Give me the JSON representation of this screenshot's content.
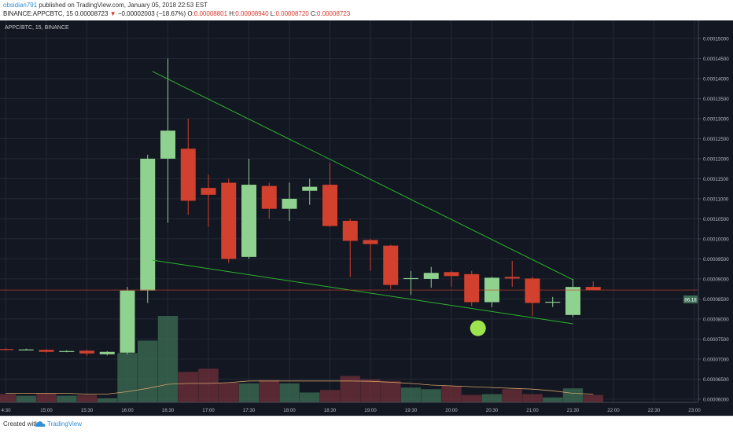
{
  "header": {
    "user": "obsidian791",
    "published": " published on TradingView.com, January 05, 2018 22:53 EST",
    "symbol_full": "BINANCE:APPCBTC, 15",
    "last": "0.00008723",
    "arrow": "▼",
    "change": "−0.00002003 (−18.67%)",
    "o_label": "O:",
    "o_value": "0.00008801",
    "h_label": "H:",
    "h_value": "0.00008940",
    "l_label": "L:",
    "l_value": "0.00008720",
    "c_label": "C:",
    "c_value": "0.00008723"
  },
  "legend": {
    "symbol": "APPC/BTC, 15, BINANCE"
  },
  "footer": {
    "created": "Created with",
    "brand": "TradingView",
    "logo_icon": "tradingview-cloud-icon"
  },
  "colors": {
    "background": "#131722",
    "up": "#8fd18e",
    "down": "#d2402e",
    "trendline": "#2bb52b",
    "price_line": "#d2402e",
    "vol_ma": "#d6a266",
    "marker": "#9de34e"
  },
  "chart_data": {
    "type": "candlestick",
    "x_ticks": [
      "4:30",
      "15:00",
      "15:30",
      "16:00",
      "16:30",
      "17:00",
      "17:30",
      "18:00",
      "18:30",
      "19:00",
      "19:30",
      "20:00",
      "20:30",
      "21:00",
      "21:30",
      "22:00",
      "22:30",
      "23:00"
    ],
    "y_ticks": [
      "0.00015000",
      "0.00014500",
      "0.00014000",
      "0.00013500",
      "0.00013000",
      "0.00012500",
      "0.00012000",
      "0.00011500",
      "0.00011000",
      "0.00010500",
      "0.00010000",
      "0.00009500",
      "0.00009000",
      "0.00008500",
      "0.00008000",
      "0.00007500",
      "0.00007000",
      "0.00006500",
      "0.00006000"
    ],
    "y_tick_values": [
      0.00015,
      0.000145,
      0.00014,
      0.000135,
      0.00013,
      0.000125,
      0.00012,
      0.000115,
      0.00011,
      0.000105,
      0.0001,
      9.5e-05,
      9e-05,
      8.5e-05,
      8e-05,
      7.5e-05,
      7e-05,
      6.5e-05,
      6e-05
    ],
    "ylim": [
      5.92e-05,
      0.0001545
    ],
    "price_label": "0.00008723",
    "price_value": 8.723e-05,
    "volume_label": "86.18",
    "candles": [
      {
        "time": "14:30",
        "o": 7.25e-05,
        "h": 7.27e-05,
        "l": 7.22e-05,
        "c": 7.23e-05
      },
      {
        "time": "14:45",
        "o": 7.24e-05,
        "h": 7.26e-05,
        "l": 7.22e-05,
        "c": 7.24e-05
      },
      {
        "time": "15:00",
        "o": 7.23e-05,
        "h": 7.25e-05,
        "l": 7.16e-05,
        "c": 7.18e-05
      },
      {
        "time": "15:15",
        "o": 7.19e-05,
        "h": 7.22e-05,
        "l": 7.17e-05,
        "c": 7.2e-05
      },
      {
        "time": "15:30",
        "o": 7.21e-05,
        "h": 7.23e-05,
        "l": 7.08e-05,
        "c": 7.14e-05
      },
      {
        "time": "15:45",
        "o": 7.12e-05,
        "h": 7.2e-05,
        "l": 7.09e-05,
        "c": 7.18e-05
      },
      {
        "time": "16:00",
        "o": 7.16e-05,
        "h": 8.8e-05,
        "l": 7.12e-05,
        "c": 8.71e-05
      },
      {
        "time": "16:15",
        "o": 8.71e-05,
        "h": 0.000121,
        "l": 8.4e-05,
        "c": 0.00012
      },
      {
        "time": "16:30",
        "o": 0.00012,
        "h": 0.000145,
        "l": 0.000104,
        "c": 0.000127
      },
      {
        "time": "16:45",
        "o": 0.0001225,
        "h": 0.00013,
        "l": 0.000106,
        "c": 0.0001095
      },
      {
        "time": "17:00",
        "o": 0.0001127,
        "h": 0.000116,
        "l": 0.000103,
        "c": 0.000111
      },
      {
        "time": "17:15",
        "o": 0.000114,
        "h": 0.000115,
        "l": 9.4e-05,
        "c": 9.5e-05
      },
      {
        "time": "17:30",
        "o": 9.55e-05,
        "h": 0.00012,
        "l": 9.5e-05,
        "c": 0.0001135
      },
      {
        "time": "17:45",
        "o": 0.0001132,
        "h": 0.000114,
        "l": 0.000105,
        "c": 0.0001075
      },
      {
        "time": "18:00",
        "o": 0.0001075,
        "h": 0.000114,
        "l": 0.0001045,
        "c": 0.00011
      },
      {
        "time": "18:15",
        "o": 0.000112,
        "h": 0.000115,
        "l": 0.0001085,
        "c": 0.000113
      },
      {
        "time": "18:30",
        "o": 0.0001135,
        "h": 0.000119,
        "l": 0.000103,
        "c": 0.0001032
      },
      {
        "time": "18:45",
        "o": 0.0001045,
        "h": 0.000105,
        "l": 9.05e-05,
        "c": 9.95e-05
      },
      {
        "time": "19:00",
        "o": 9.97e-05,
        "h": 0.0001,
        "l": 9.2e-05,
        "c": 9.87e-05
      },
      {
        "time": "19:15",
        "o": 9.83e-05,
        "h": 9.85e-05,
        "l": 8.75e-05,
        "c": 8.85e-05
      },
      {
        "time": "19:30",
        "o": 9e-05,
        "h": 9.2e-05,
        "l": 8.6e-05,
        "c": 9.02e-05
      },
      {
        "time": "19:45",
        "o": 9e-05,
        "h": 9.3e-05,
        "l": 8.78e-05,
        "c": 9.15e-05
      },
      {
        "time": "20:00",
        "o": 9.17e-05,
        "h": 9.2e-05,
        "l": 8.8e-05,
        "c": 9.07e-05
      },
      {
        "time": "20:15",
        "o": 9.12e-05,
        "h": 9.2e-05,
        "l": 8.32e-05,
        "c": 8.42e-05
      },
      {
        "time": "20:30",
        "o": 8.42e-05,
        "h": 9.05e-05,
        "l": 8.3e-05,
        "c": 9.03e-05
      },
      {
        "time": "20:45",
        "o": 9.05e-05,
        "h": 9.45e-05,
        "l": 8.8e-05,
        "c": 9.01e-05
      },
      {
        "time": "21:00",
        "o": 9.01e-05,
        "h": 9.05e-05,
        "l": 8.08e-05,
        "c": 8.4e-05
      },
      {
        "time": "21:15",
        "o": 8.42e-05,
        "h": 8.55e-05,
        "l": 8.3e-05,
        "c": 8.43e-05
      },
      {
        "time": "21:30",
        "o": 8.1e-05,
        "h": 9e-05,
        "l": 8.05e-05,
        "c": 8.8e-05
      },
      {
        "time": "21:45",
        "o": 8.8e-05,
        "h": 8.94e-05,
        "l": 8.72e-05,
        "c": 8.72e-05
      }
    ],
    "volume": [
      0.5,
      0.4,
      0.55,
      0.4,
      0.45,
      0.25,
      3.0,
      3.75,
      5.25,
      1.85,
      2.05,
      1.2,
      1.15,
      1.35,
      1.15,
      0.6,
      0.75,
      1.6,
      1.4,
      1.3,
      0.9,
      0.8,
      1.0,
      0.45,
      0.5,
      0.8,
      0.5,
      0.3,
      0.85,
      0.45
    ],
    "volume_max_ref": 5.25,
    "volume_ma": [
      0.55,
      0.55,
      0.55,
      0.55,
      0.5,
      0.5,
      0.65,
      0.85,
      1.1,
      1.15,
      1.15,
      1.2,
      1.3,
      1.3,
      1.3,
      1.3,
      1.3,
      1.3,
      1.28,
      1.22,
      1.15,
      1.05,
      1.0,
      0.95,
      0.9,
      0.85,
      0.8,
      0.7,
      0.55,
      0.5
    ],
    "trendlines": [
      {
        "from": {
          "time": "16:15",
          "price": 0.0001418
        },
        "to": {
          "time": "21:30",
          "price": 8.98e-05
        }
      },
      {
        "from": {
          "time": "16:15",
          "price": 9.47e-05
        },
        "to": {
          "time": "21:30",
          "price": 7.88e-05
        }
      }
    ],
    "marker": {
      "time": "20:15",
      "price": 7.77e-05
    }
  }
}
